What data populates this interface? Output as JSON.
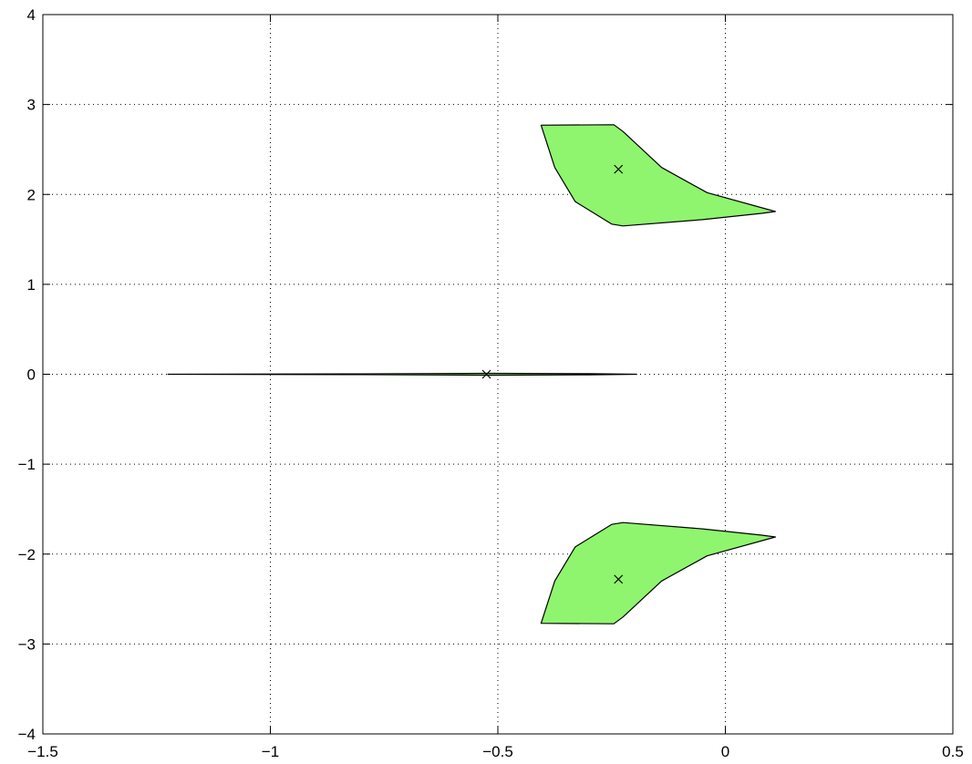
{
  "chart_data": {
    "type": "scatter",
    "title": "",
    "xlabel": "",
    "ylabel": "",
    "xlim": [
      -1.5,
      0.5
    ],
    "ylim": [
      -4,
      4
    ],
    "xticks": [
      -1.5,
      -1,
      -0.5,
      0,
      0.5
    ],
    "yticks": [
      -4,
      -3,
      -2,
      -1,
      0,
      1,
      2,
      3,
      4
    ],
    "xtick_labels": [
      "−1.5",
      "−1",
      "−0.5",
      "0",
      "0.5"
    ],
    "ytick_labels": [
      "−4",
      "−3",
      "−2",
      "−1",
      "0",
      "1",
      "2",
      "3",
      "4"
    ],
    "grid": true,
    "fill_color": "#8ff56e",
    "regions": [
      {
        "name": "upper",
        "points": [
          [
            -0.405,
            2.77
          ],
          [
            -0.245,
            2.775
          ],
          [
            -0.225,
            2.7
          ],
          [
            -0.14,
            2.3
          ],
          [
            -0.04,
            2.02
          ],
          [
            0.11,
            1.81
          ],
          [
            0.08,
            1.79
          ],
          [
            -0.05,
            1.72
          ],
          [
            -0.225,
            1.65
          ],
          [
            -0.25,
            1.67
          ],
          [
            -0.33,
            1.92
          ],
          [
            -0.375,
            2.3
          ],
          [
            -0.405,
            2.77
          ]
        ]
      },
      {
        "name": "lower",
        "points": [
          [
            -0.405,
            -2.77
          ],
          [
            -0.245,
            -2.775
          ],
          [
            -0.225,
            -2.7
          ],
          [
            -0.14,
            -2.3
          ],
          [
            -0.04,
            -2.02
          ],
          [
            0.11,
            -1.81
          ],
          [
            0.08,
            -1.79
          ],
          [
            -0.05,
            -1.72
          ],
          [
            -0.225,
            -1.65
          ],
          [
            -0.25,
            -1.67
          ],
          [
            -0.33,
            -1.92
          ],
          [
            -0.375,
            -2.3
          ],
          [
            -0.405,
            -2.77
          ]
        ]
      },
      {
        "name": "real-axis",
        "points": [
          [
            -1.225,
            0.0
          ],
          [
            -0.8,
            0.004
          ],
          [
            -0.52,
            0.01
          ],
          [
            -0.3,
            0.006
          ],
          [
            -0.195,
            0.0
          ],
          [
            -0.3,
            -0.006
          ],
          [
            -0.52,
            -0.01
          ],
          [
            -0.8,
            -0.004
          ],
          [
            -1.225,
            0.0
          ]
        ]
      }
    ],
    "poles": [
      {
        "x": -0.235,
        "y": 2.28
      },
      {
        "x": -0.525,
        "y": 0.0
      },
      {
        "x": -0.235,
        "y": -2.28
      }
    ],
    "marker": "x"
  }
}
